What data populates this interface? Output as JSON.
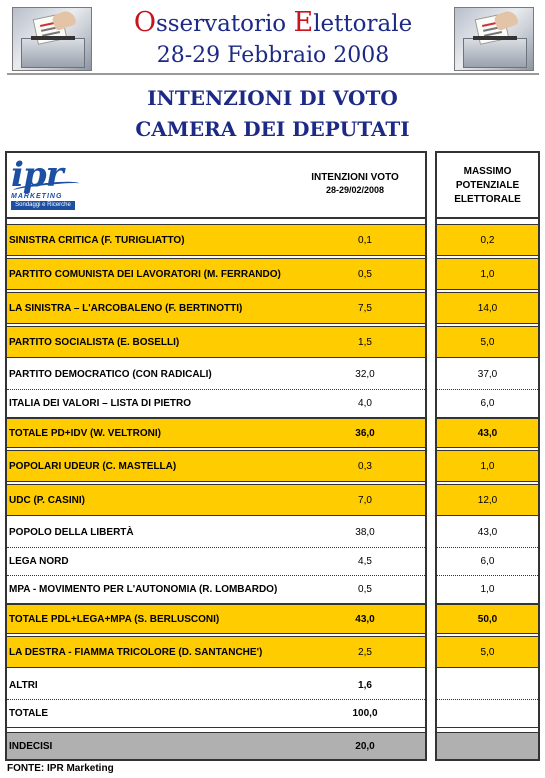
{
  "banner": {
    "title_cap1": "O",
    "title_rest1": "sservatorio ",
    "title_cap2": "E",
    "title_rest2": "lettorale",
    "date": "28-29 Febbraio 2008"
  },
  "headings": {
    "line1": "INTENZIONI DI VOTO",
    "line2": "CAMERA DEI DEPUTATI"
  },
  "logo": {
    "brand": "ipr",
    "sub": "MARKETING",
    "tagline": "Sondaggi e Ricerche"
  },
  "table": {
    "col1_header": "INTENZIONI VOTO",
    "col1_sub": "28-29/02/2008",
    "col2_header_l1": "MASSIMO",
    "col2_header_l2": "POTENZIALE",
    "col2_header_l3": "ELETTORALE",
    "rows": [
      {
        "label": "SINISTRA CRITICA (F. TURIGLIATTO)",
        "vote": "0,1",
        "max": "0,2"
      },
      {
        "label": "PARTITO COMUNISTA DEI LAVORATORI (M. FERRANDO)",
        "vote": "0,5",
        "max": "1,0"
      },
      {
        "label": "LA SINISTRA – L'ARCOBALENO (F. BERTINOTTI)",
        "vote": "7,5",
        "max": "14,0"
      },
      {
        "label": "PARTITO SOCIALISTA (E. BOSELLI)",
        "vote": "1,5",
        "max": "5,0"
      },
      {
        "label": "PARTITO DEMOCRATICO (CON RADICALI)",
        "vote": "32,0",
        "max": "37,0"
      },
      {
        "label": "ITALIA DEI VALORI – LISTA DI PIETRO",
        "vote": "4,0",
        "max": "6,0"
      },
      {
        "label": "TOTALE PD+IDV (W. VELTRONI)",
        "vote": "36,0",
        "max": "43,0"
      },
      {
        "label": "POPOLARI UDEUR (C. MASTELLA)",
        "vote": "0,3",
        "max": "1,0"
      },
      {
        "label": "UDC (P. CASINI)",
        "vote": "7,0",
        "max": "12,0"
      },
      {
        "label": "POPOLO DELLA LIBERTÀ",
        "vote": "38,0",
        "max": "43,0"
      },
      {
        "label": "LEGA NORD",
        "vote": "4,5",
        "max": "6,0"
      },
      {
        "label": "MPA - MOVIMENTO PER L'AUTONOMIA (R. LOMBARDO)",
        "vote": "0,5",
        "max": "1,0"
      },
      {
        "label": "TOTALE PDL+LEGA+MPA (S. BERLUSCONI)",
        "vote": "43,0",
        "max": "50,0"
      },
      {
        "label": "LA DESTRA - FIAMMA TRICOLORE (D. SANTANCHE')",
        "vote": "2,5",
        "max": "5,0"
      },
      {
        "label": "ALTRI",
        "vote": "1,6",
        "max": ""
      },
      {
        "label": "TOTALE",
        "vote": "100,0",
        "max": ""
      },
      {
        "label": "INDECISI",
        "vote": "20,0",
        "max": ""
      }
    ]
  },
  "footer": {
    "source": "FONTE: IPR Marketing"
  },
  "colors": {
    "highlight": "#ffcc00",
    "title_blue": "#1c2a86",
    "title_red": "#c8141e",
    "grey_row": "#b0b0b0"
  }
}
